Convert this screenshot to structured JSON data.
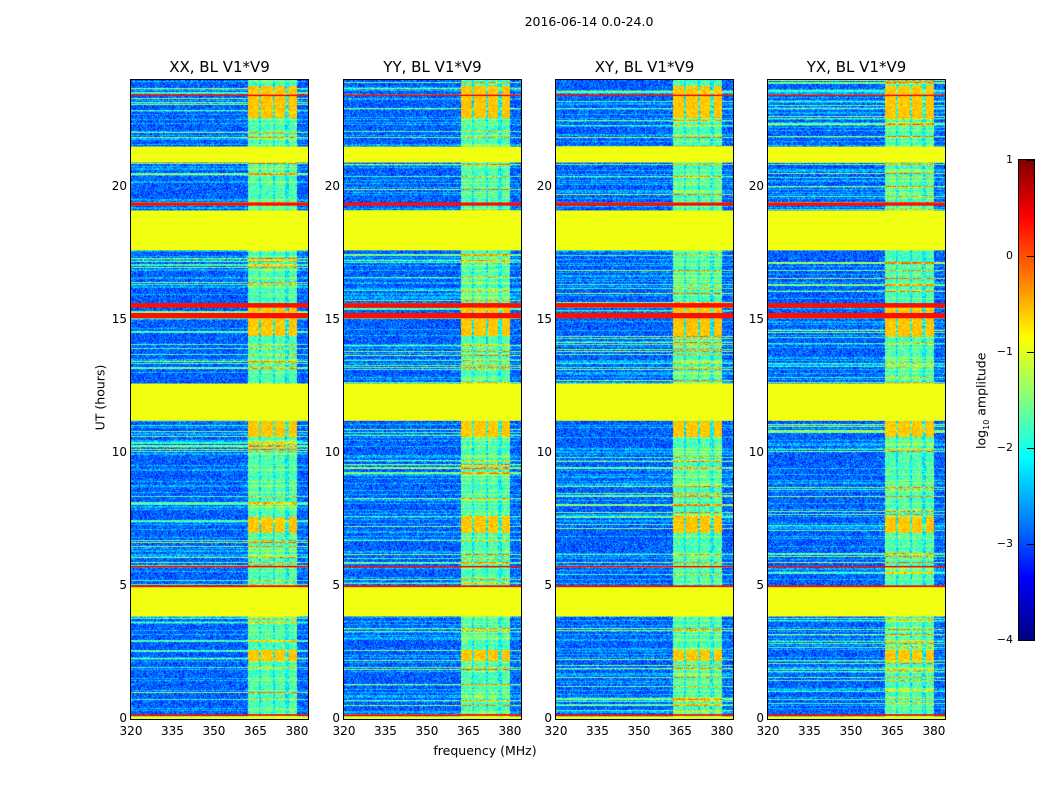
{
  "chart_data": {
    "type": "heatmap",
    "title": "2016-06-14 0.0-24.0",
    "xlabel": "frequency (MHz)",
    "ylabel": "UT (hours)",
    "xlim": [
      320,
      384
    ],
    "ylim": [
      0,
      24
    ],
    "xticks": [
      "320",
      "335",
      "350",
      "365",
      "380"
    ],
    "xtick_values": [
      320,
      335,
      350,
      365,
      380
    ],
    "yticks": [
      "0",
      "5",
      "10",
      "15",
      "20"
    ],
    "ytick_values": [
      0,
      5,
      10,
      15,
      20
    ],
    "panels": [
      {
        "title": "XX, BL V1*V9"
      },
      {
        "title": "YY, BL V1*V9"
      },
      {
        "title": "XY, BL V1*V9"
      },
      {
        "title": "YX, BL V1*V9"
      }
    ],
    "colorbar": {
      "label_main": "log",
      "label_sub": "10",
      "label_rest": " amplitude",
      "range": [
        -4,
        1
      ],
      "ticks": [
        "1",
        "0",
        "−1",
        "−2",
        "−3",
        "−4"
      ],
      "tick_values": [
        1,
        0,
        -1,
        -2,
        -3,
        -4
      ],
      "colormap": "jet"
    },
    "background_level": -2.9,
    "rfi_channels_mhz": [
      [
        362,
        366
      ],
      [
        367,
        371
      ],
      [
        372,
        375.5
      ],
      [
        377,
        380
      ]
    ],
    "flagged_bands_hours": [
      [
        0.0,
        0.1
      ],
      [
        3.85,
        4.95
      ],
      [
        11.2,
        12.6
      ],
      [
        17.6,
        19.1
      ],
      [
        20.9,
        21.5
      ]
    ],
    "flag_level": -0.95,
    "strong_rfi_lines_hours": [
      [
        0.12,
        0.18
      ],
      [
        4.95,
        5.02
      ],
      [
        5.7,
        5.75
      ],
      [
        15.05,
        15.25
      ],
      [
        15.45,
        15.62
      ],
      [
        19.28,
        19.4
      ],
      [
        23.4,
        23.45
      ]
    ],
    "strong_rfi_level": 0.3,
    "rfi_blocks_hours": [
      [
        2.2,
        2.6
      ],
      [
        7.0,
        7.6
      ],
      [
        10.6,
        11.2
      ],
      [
        14.4,
        15.6
      ],
      [
        22.6,
        23.8
      ]
    ],
    "rfi_block_level": -0.6
  }
}
